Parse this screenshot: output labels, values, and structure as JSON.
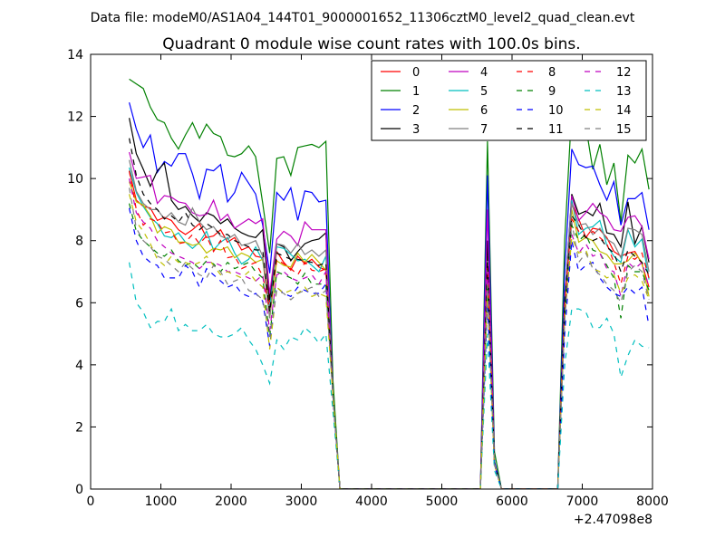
{
  "chart_data": {
    "type": "line",
    "suptitle": "Data file: modeM0/AS1A04_144T01_9000001652_11306cztM0_level2_quad_clean.evt",
    "title": "Quadrant 0 module wise count rates with 100.0s bins.",
    "xlabel": "",
    "ylabel": "",
    "xlim": [
      0,
      8000
    ],
    "ylim": [
      0,
      14
    ],
    "xticks": [
      "0",
      "1000",
      "2000",
      "3000",
      "4000",
      "5000",
      "6000",
      "7000",
      "8000"
    ],
    "yticks": [
      "0",
      "2",
      "4",
      "6",
      "8",
      "10",
      "12",
      "14"
    ],
    "x_offset_label": "+2.47098e8",
    "grid": false,
    "legend_position": "top-right",
    "legend_columns": 4,
    "x_layout": {
      "run1_x": [
        550,
        3350
      ],
      "tail1_x": 3450,
      "zero1_x": [
        3550,
        5550
      ],
      "spike_x": [
        5650,
        5750
      ],
      "zero2_x": [
        5850,
        6650
      ],
      "rise_x": 6750,
      "run2_x": [
        6850,
        7950
      ],
      "step": 100
    },
    "series": [
      {
        "name": "0",
        "color": "#ff0000",
        "dashed": false,
        "run1": [
          10.25,
          9.3,
          9.1,
          9.05,
          8.65,
          8.75,
          8.65,
          8.35,
          8.2,
          8.35,
          8.55,
          8.1,
          8.15,
          8.35,
          7.95,
          8.1,
          7.7,
          7.8,
          7.5,
          7.45,
          6.0,
          7.65,
          7.3,
          7.05,
          7.5,
          7.25,
          7.4,
          7.15,
          7.05
        ],
        "tail1": 3,
        "spike": [
          7.8,
          0.8
        ],
        "rise": 6,
        "run2": [
          9.2,
          8.7,
          8.1,
          8.4,
          8.35,
          8.1,
          7.65,
          7.5,
          7.6,
          7.65,
          7.25,
          6.5
        ]
      },
      {
        "name": "1",
        "color": "#008000",
        "dashed": false,
        "run1": [
          13.2,
          13.05,
          12.9,
          12.3,
          11.9,
          11.8,
          11.3,
          10.95,
          11.4,
          11.8,
          11.3,
          11.75,
          11.45,
          11.35,
          10.75,
          10.7,
          10.8,
          11.05,
          10.7,
          9.2,
          7.6,
          10.65,
          10.7,
          10.1,
          11.0,
          11.05,
          11.1,
          11.0,
          11.2
        ],
        "tail1": 3.5,
        "spike": [
          11.2,
          1.2
        ],
        "rise": 8,
        "run2": [
          12.25,
          12.0,
          11.7,
          10.3,
          11.1,
          9.8,
          10.5,
          8.6,
          10.75,
          10.5,
          10.95,
          9.65
        ]
      },
      {
        "name": "2",
        "color": "#0000ff",
        "dashed": false,
        "run1": [
          12.45,
          11.6,
          11.0,
          11.4,
          10.2,
          10.55,
          10.4,
          10.8,
          10.8,
          10.15,
          9.35,
          10.3,
          10.25,
          10.45,
          9.25,
          9.55,
          10.2,
          9.85,
          9.5,
          8.5,
          6.95,
          9.55,
          9.3,
          9.7,
          8.65,
          9.6,
          9.55,
          9.25,
          9.3
        ],
        "tail1": 3,
        "spike": [
          10.1,
          0.9
        ],
        "rise": 7,
        "run2": [
          10.95,
          10.45,
          10.35,
          10.4,
          9.8,
          9.3,
          9.9,
          8.5,
          9.35,
          9.35,
          9.55,
          8.35
        ]
      },
      {
        "name": "3",
        "color": "#000000",
        "dashed": false,
        "run1": [
          11.95,
          10.8,
          10.3,
          9.75,
          10.25,
          10.5,
          9.3,
          9.0,
          9.1,
          8.8,
          8.6,
          8.9,
          8.8,
          8.55,
          8.7,
          8.4,
          8.25,
          8.15,
          8.1,
          8.35,
          6.1,
          7.9,
          7.8,
          7.35,
          7.65,
          7.9,
          8.0,
          8.05,
          8.25
        ],
        "tail1": 3,
        "spike": [
          8.0,
          0.8
        ],
        "rise": 6,
        "run2": [
          9.5,
          8.85,
          8.95,
          8.8,
          9.2,
          8.25,
          8.2,
          7.8,
          9.25,
          7.9,
          8.45,
          7.3
        ]
      },
      {
        "name": "4",
        "color": "#bf00bf",
        "dashed": false,
        "run1": [
          10.85,
          10.0,
          10.05,
          10.1,
          9.2,
          9.45,
          9.4,
          9.25,
          9.2,
          8.9,
          8.8,
          8.85,
          9.3,
          8.65,
          8.85,
          8.4,
          8.55,
          8.7,
          8.55,
          8.7,
          6.3,
          8.05,
          8.3,
          8.15,
          7.85,
          8.6,
          8.35,
          8.35,
          8.35
        ],
        "tail1": 3,
        "spike": [
          9.0,
          0.8
        ],
        "rise": 6,
        "run2": [
          9.45,
          8.65,
          8.9,
          9.2,
          8.9,
          8.75,
          8.35,
          8.3,
          8.75,
          8.8,
          8.45,
          7.4
        ]
      },
      {
        "name": "5",
        "color": "#00bfbf",
        "dashed": false,
        "run1": [
          10.35,
          9.55,
          9.1,
          8.75,
          8.55,
          8.15,
          8.1,
          8.25,
          7.95,
          7.75,
          7.95,
          8.3,
          7.7,
          7.95,
          8.1,
          7.6,
          7.25,
          7.4,
          7.8,
          7.35,
          5.8,
          7.8,
          7.75,
          7.55,
          7.35,
          7.4,
          7.2,
          7.0,
          7.5
        ],
        "tail1": 3,
        "spike": [
          7.0,
          0.8
        ],
        "rise": 6,
        "run2": [
          9.3,
          8.2,
          8.4,
          8.45,
          8.65,
          7.85,
          7.5,
          7.3,
          8.35,
          7.8,
          8.05,
          6.75
        ]
      },
      {
        "name": "6",
        "color": "#bfbf00",
        "dashed": false,
        "run1": [
          9.9,
          9.25,
          9.15,
          8.8,
          8.25,
          8.45,
          8.35,
          7.95,
          7.95,
          7.85,
          7.9,
          7.6,
          7.75,
          7.7,
          7.8,
          7.45,
          7.6,
          7.5,
          7.3,
          7.4,
          5.5,
          7.35,
          7.2,
          7.15,
          7.6,
          7.3,
          7.55,
          7.3,
          7.05
        ],
        "tail1": 3,
        "spike": [
          6.5,
          0.8
        ],
        "rise": 6,
        "run2": [
          9.0,
          7.95,
          8.1,
          8.0,
          7.65,
          7.55,
          7.25,
          7.25,
          7.35,
          7.6,
          7.3,
          6.2
        ]
      },
      {
        "name": "7",
        "color": "#808080",
        "dashed": false,
        "run1": [
          10.6,
          9.6,
          9.2,
          9.0,
          9.0,
          8.7,
          8.9,
          8.6,
          8.5,
          9.05,
          8.6,
          8.35,
          8.45,
          8.15,
          8.05,
          8.2,
          7.85,
          7.9,
          8.0,
          7.5,
          5.5,
          7.9,
          7.85,
          7.6,
          7.9,
          7.55,
          7.7,
          7.5,
          7.7
        ],
        "tail1": 3,
        "spike": [
          7.5,
          0.8
        ],
        "rise": 6,
        "run2": [
          9.2,
          8.5,
          8.55,
          8.2,
          8.4,
          8.05,
          7.9,
          7.45,
          8.4,
          8.35,
          8.2,
          7.0
        ]
      },
      {
        "name": "8",
        "color": "#ff0000",
        "dashed": true,
        "run1": [
          10.25,
          9.0,
          8.5,
          8.7,
          8.6,
          8.25,
          8.3,
          7.9,
          7.95,
          8.2,
          7.9,
          8.15,
          7.65,
          8.0,
          7.45,
          7.5,
          7.1,
          7.2,
          7.3,
          6.85,
          5.8,
          7.4,
          7.25,
          7.1,
          6.9,
          7.3,
          7.05,
          7.0,
          7.1
        ],
        "tail1": 3,
        "spike": [
          7.2,
          0.8
        ],
        "rise": 6,
        "run2": [
          8.7,
          8.3,
          8.1,
          8.3,
          8.1,
          7.9,
          7.3,
          6.6,
          7.5,
          7.4,
          7.6,
          6.8
        ]
      },
      {
        "name": "9",
        "color": "#008000",
        "dashed": true,
        "run1": [
          9.2,
          8.3,
          8.0,
          7.8,
          7.6,
          7.5,
          7.7,
          7.35,
          7.2,
          7.3,
          7.1,
          7.35,
          7.25,
          7.0,
          7.3,
          7.1,
          7.2,
          7.3,
          7.0,
          6.8,
          4.9,
          7.0,
          6.9,
          6.8,
          6.6,
          6.95,
          6.6,
          6.6,
          6.6
        ],
        "tail1": 3,
        "spike": [
          6.8,
          0.8
        ],
        "rise": 5.5,
        "run2": [
          8.5,
          8.0,
          8.2,
          7.7,
          7.6,
          7.2,
          6.8,
          5.5,
          7.2,
          7.0,
          7.0,
          6.4
        ]
      },
      {
        "name": "10",
        "color": "#0000ff",
        "dashed": true,
        "run1": [
          9.05,
          8.0,
          7.5,
          7.3,
          7.2,
          6.8,
          6.8,
          6.8,
          7.2,
          7.0,
          6.5,
          7.1,
          6.9,
          6.7,
          6.5,
          6.6,
          6.3,
          6.2,
          6.3,
          6.05,
          4.6,
          6.5,
          6.3,
          6.2,
          6.5,
          6.4,
          6.3,
          6.3,
          6.6
        ],
        "tail1": 3,
        "spike": [
          6.0,
          0.8
        ],
        "rise": 5,
        "run2": [
          8.0,
          7.0,
          7.2,
          7.3,
          6.8,
          6.5,
          6.3,
          6.2,
          6.5,
          6.3,
          6.5,
          5.25
        ]
      },
      {
        "name": "11",
        "color": "#000000",
        "dashed": true,
        "run1": [
          11.3,
          10.1,
          9.5,
          9.2,
          9.0,
          8.7,
          8.8,
          8.6,
          8.9,
          8.5,
          8.35,
          8.55,
          8.4,
          8.2,
          8.2,
          8.0,
          7.9,
          7.8,
          7.7,
          7.7,
          5.7,
          7.6,
          7.5,
          7.4,
          7.4,
          7.35,
          7.3,
          7.2,
          7.3
        ],
        "tail1": 3,
        "spike": [
          7.5,
          0.8
        ],
        "rise": 6,
        "run2": [
          8.8,
          8.5,
          8.1,
          8.0,
          8.1,
          7.8,
          7.6,
          7.0,
          7.7,
          7.5,
          7.3,
          6.9
        ]
      },
      {
        "name": "12",
        "color": "#bf00bf",
        "dashed": true,
        "run1": [
          10.0,
          8.9,
          8.6,
          8.4,
          8.0,
          7.8,
          7.6,
          7.5,
          7.4,
          7.3,
          7.1,
          7.3,
          7.3,
          7.2,
          7.0,
          7.0,
          6.9,
          6.8,
          6.7,
          6.9,
          5.1,
          6.9,
          7.0,
          6.8,
          6.7,
          6.8,
          6.9,
          6.6,
          7.0
        ],
        "tail1": 3,
        "spike": [
          7.0,
          0.8
        ],
        "rise": 5.5,
        "run2": [
          8.2,
          7.6,
          7.9,
          7.5,
          7.6,
          7.1,
          7.0,
          6.2,
          7.3,
          7.1,
          7.3,
          6.5
        ]
      },
      {
        "name": "13",
        "color": "#00bfbf",
        "dashed": true,
        "run1": [
          7.3,
          6.0,
          5.7,
          5.2,
          5.4,
          5.4,
          5.8,
          5.1,
          5.3,
          5.1,
          5.1,
          5.3,
          5.0,
          4.9,
          4.9,
          5.0,
          5.2,
          4.8,
          4.5,
          4.0,
          3.4,
          4.8,
          4.5,
          4.9,
          4.8,
          5.2,
          5.0,
          4.7,
          5.0
        ],
        "tail1": 2.5,
        "spike": [
          5.0,
          0.6
        ],
        "rise": 4,
        "run2": [
          5.8,
          5.8,
          5.7,
          5.2,
          5.2,
          5.5,
          5.0,
          3.6,
          4.3,
          4.8,
          4.6,
          4.55
        ]
      },
      {
        "name": "14",
        "color": "#bfbf00",
        "dashed": true,
        "run1": [
          9.5,
          8.6,
          8.3,
          7.9,
          7.4,
          7.2,
          7.5,
          7.3,
          7.3,
          7.2,
          7.3,
          7.5,
          7.2,
          6.9,
          7.0,
          6.9,
          6.8,
          7.0,
          6.7,
          6.5,
          4.5,
          6.5,
          6.3,
          6.4,
          6.3,
          6.5,
          6.2,
          6.3,
          6.2
        ],
        "tail1": 3,
        "spike": [
          6.3,
          0.8
        ],
        "rise": 5.5,
        "run2": [
          8.1,
          7.6,
          7.7,
          7.1,
          7.0,
          6.8,
          6.9,
          6.3,
          6.8,
          6.9,
          6.7,
          6.1
        ]
      },
      {
        "name": "15",
        "color": "#808080",
        "dashed": true,
        "run1": [
          9.7,
          8.4,
          8.0,
          7.8,
          7.5,
          7.4,
          7.2,
          7.0,
          7.3,
          7.1,
          6.9,
          6.8,
          7.2,
          7.0,
          6.6,
          6.7,
          6.8,
          6.4,
          6.3,
          6.1,
          4.9,
          6.4,
          6.3,
          6.1,
          6.3,
          6.4,
          6.5,
          6.2,
          6.4
        ],
        "tail1": 3,
        "spike": [
          6.6,
          0.8
        ],
        "rise": 5.5,
        "run2": [
          8.6,
          7.3,
          7.6,
          7.1,
          6.9,
          6.6,
          6.4,
          6.0,
          7.0,
          7.2,
          7.0,
          6.1
        ]
      }
    ]
  }
}
